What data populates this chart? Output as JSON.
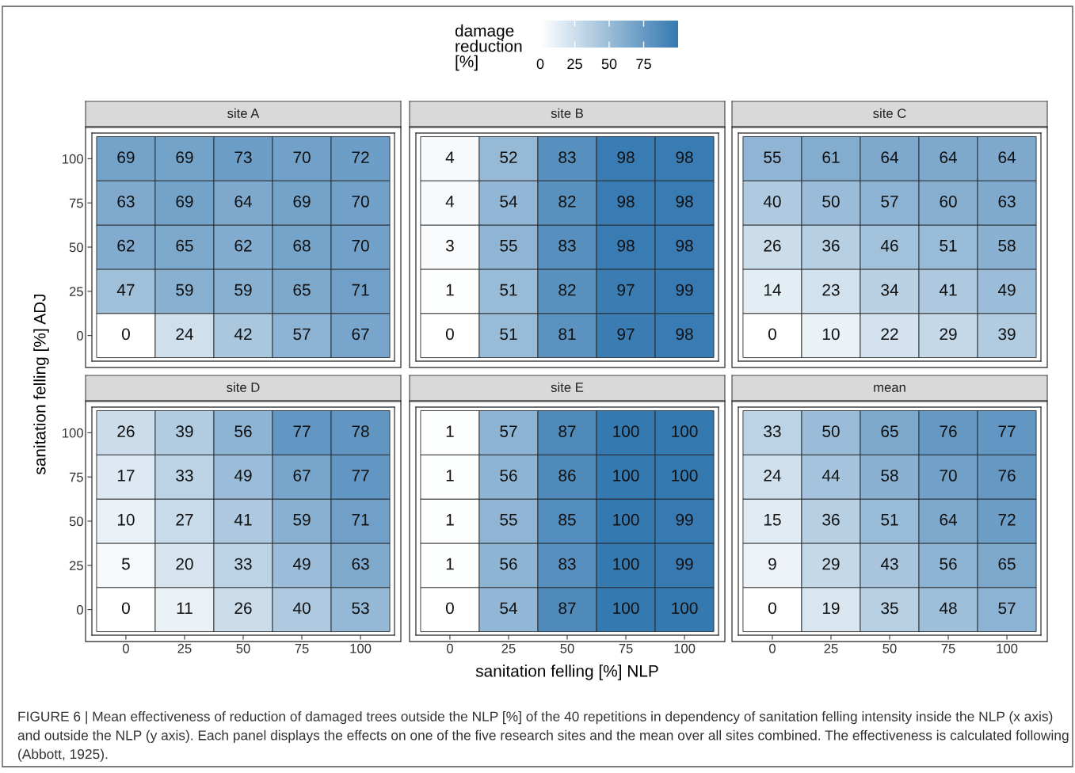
{
  "chart_data": [
    {
      "type": "heatmap",
      "title": "site A",
      "categories": [
        "0",
        "25",
        "50",
        "75",
        "100"
      ],
      "y_categories": [
        "100",
        "75",
        "50",
        "25",
        "0"
      ],
      "ylabel": "sanitation felling [%] ADJ",
      "clabel": "damage reduction [%]",
      "clim": [
        0,
        100
      ],
      "cticks": [
        0,
        25,
        50,
        75
      ],
      "data_labels": true,
      "tick_labels": "y",
      "annotations": [
        "FIGURE 6 | Mean effectiveness of reduction of damaged trees outside the NLP [%] of the 40 repetitions in dependency of sanitation felling intensity inside the NLP (x axis) and outside the NLP (y axis). Each panel displays the effects on one of the five research sites and the mean over all sites combined. The effectiveness is calculated following (Abbott, 1925)."
      ],
      "cells": [
        [
          69,
          69,
          73,
          70,
          72
        ],
        [
          63,
          69,
          64,
          69,
          70
        ],
        [
          62,
          65,
          62,
          68,
          70
        ],
        [
          47,
          59,
          59,
          65,
          71
        ],
        [
          0,
          24,
          42,
          57,
          67
        ]
      ]
    },
    {
      "type": "heatmap",
      "title": "site B",
      "categories": [
        "0",
        "25",
        "50",
        "75",
        "100"
      ],
      "y_categories": [
        "100",
        "75",
        "50",
        "25",
        "0"
      ],
      "data_labels": true,
      "tick_labels": false,
      "cells": [
        [
          4,
          52,
          83,
          98,
          98
        ],
        [
          4,
          54,
          82,
          98,
          98
        ],
        [
          3,
          55,
          83,
          98,
          98
        ],
        [
          1,
          51,
          82,
          97,
          99
        ],
        [
          0,
          51,
          81,
          97,
          98
        ]
      ]
    },
    {
      "type": "heatmap",
      "title": "site C",
      "categories": [
        "0",
        "25",
        "50",
        "75",
        "100"
      ],
      "y_categories": [
        "100",
        "75",
        "50",
        "25",
        "0"
      ],
      "data_labels": true,
      "tick_labels": false,
      "cells": [
        [
          55,
          61,
          64,
          64,
          64
        ],
        [
          40,
          50,
          57,
          60,
          63
        ],
        [
          26,
          36,
          46,
          51,
          58
        ],
        [
          14,
          23,
          34,
          41,
          49
        ],
        [
          0,
          10,
          22,
          29,
          39
        ]
      ]
    },
    {
      "type": "heatmap",
      "title": "site D",
      "categories": [
        "0",
        "25",
        "50",
        "75",
        "100"
      ],
      "y_categories": [
        "100",
        "75",
        "50",
        "25",
        "0"
      ],
      "data_labels": true,
      "cells": [
        [
          26,
          39,
          56,
          77,
          78
        ],
        [
          17,
          33,
          49,
          67,
          77
        ],
        [
          10,
          27,
          41,
          59,
          71
        ],
        [
          5,
          20,
          33,
          49,
          63
        ],
        [
          0,
          11,
          26,
          40,
          53
        ]
      ]
    },
    {
      "type": "heatmap",
      "title": "site E",
      "categories": [
        "0",
        "25",
        "50",
        "75",
        "100"
      ],
      "y_categories": [
        "100",
        "75",
        "50",
        "25",
        "0"
      ],
      "xlabel": "sanitation felling [%] NLP",
      "data_labels": true,
      "tick_labels": "x",
      "cells": [
        [
          1,
          57,
          87,
          100,
          100
        ],
        [
          1,
          56,
          86,
          100,
          100
        ],
        [
          1,
          55,
          85,
          100,
          99
        ],
        [
          1,
          56,
          83,
          100,
          99
        ],
        [
          0,
          54,
          87,
          100,
          100
        ]
      ]
    },
    {
      "type": "heatmap",
      "title": "mean",
      "categories": [
        "0",
        "25",
        "50",
        "75",
        "100"
      ],
      "y_categories": [
        "100",
        "75",
        "50",
        "25",
        "0"
      ],
      "data_labels": true,
      "tick_labels": "x",
      "cells": [
        [
          33,
          50,
          65,
          76,
          77
        ],
        [
          24,
          44,
          58,
          70,
          76
        ],
        [
          15,
          36,
          51,
          64,
          72
        ],
        [
          9,
          29,
          43,
          56,
          65
        ],
        [
          0,
          19,
          35,
          48,
          57
        ]
      ]
    }
  ]
}
